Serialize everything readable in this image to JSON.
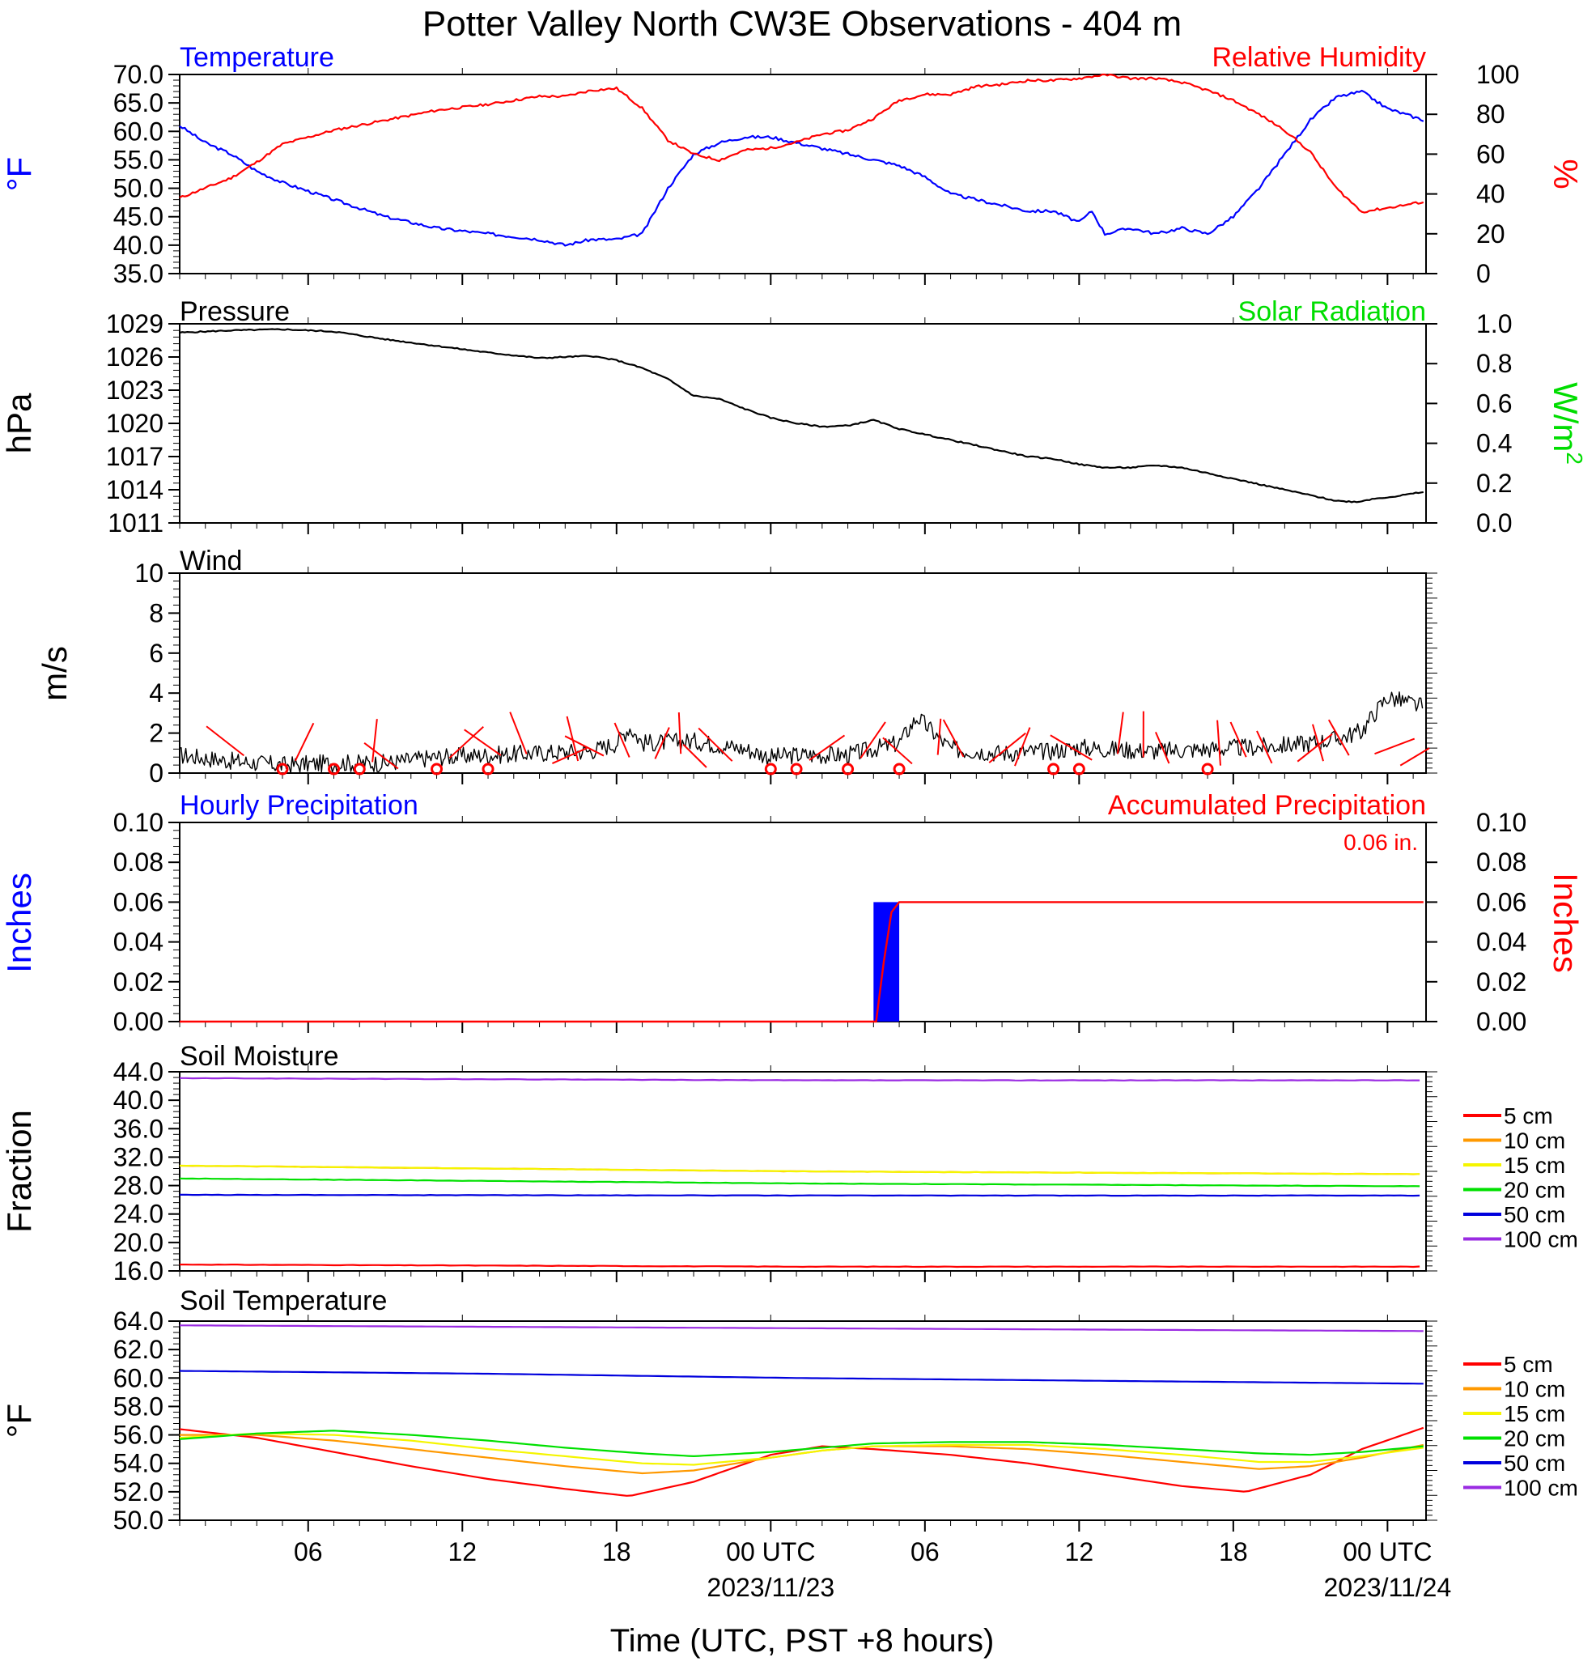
{
  "title": "Potter Valley North CW3E Observations - 404 m",
  "xaxis": {
    "title": "Time (UTC, PST +8 hours)",
    "range_hours": [
      0,
      48.5
    ],
    "ticks": [
      {
        "h": 5,
        "label": "06",
        "date": ""
      },
      {
        "h": 11,
        "label": "12",
        "date": ""
      },
      {
        "h": 17,
        "label": "18",
        "date": ""
      },
      {
        "h": 23,
        "label": "00 UTC",
        "date": "2023/11/23"
      },
      {
        "h": 29,
        "label": "06",
        "date": ""
      },
      {
        "h": 35,
        "label": "12",
        "date": ""
      },
      {
        "h": 41,
        "label": "18",
        "date": ""
      },
      {
        "h": 47,
        "label": "00 UTC",
        "date": "2023/11/24"
      }
    ]
  },
  "panels": {
    "temp_rh": {
      "left_title": "Temperature",
      "right_title": "Relative Humidity",
      "left_ylabel": "°F",
      "right_ylabel": "%",
      "left_ticks": [
        "35.0",
        "40.0",
        "45.0",
        "50.0",
        "55.0",
        "60.0",
        "65.0",
        "70.0"
      ],
      "right_ticks": [
        "0",
        "20",
        "40",
        "60",
        "80",
        "100"
      ]
    },
    "pressure": {
      "left_title": "Pressure",
      "right_title": "Solar Radiation",
      "left_ylabel": "hPa",
      "right_ylabel": "W/m",
      "right_ylabel_sup": "2",
      "left_ticks": [
        "1011",
        "1014",
        "1017",
        "1020",
        "1023",
        "1026",
        "1029"
      ],
      "right_ticks": [
        "0.0",
        "0.2",
        "0.4",
        "0.6",
        "0.8",
        "1.0"
      ]
    },
    "wind": {
      "left_title": "Wind",
      "left_ylabel": "m/s",
      "left_ticks": [
        "0",
        "2",
        "4",
        "6",
        "8",
        "10"
      ]
    },
    "precip": {
      "left_title": "Hourly Precipitation",
      "right_title": "Accumulated Precipitation",
      "total_label": "0.06 in.",
      "left_ylabel": "Inches",
      "right_ylabel": "Inches",
      "left_ticks": [
        "0.00",
        "0.02",
        "0.04",
        "0.06",
        "0.08",
        "0.10"
      ],
      "right_ticks": [
        "0.00",
        "0.02",
        "0.04",
        "0.06",
        "0.08",
        "0.10"
      ]
    },
    "soil_moisture": {
      "left_title": "Soil Moisture",
      "left_ylabel": "Fraction",
      "left_ticks": [
        "16.0",
        "20.0",
        "24.0",
        "28.0",
        "32.0",
        "36.0",
        "40.0",
        "44.0"
      ],
      "legend": [
        "5 cm",
        "10 cm",
        "15 cm",
        "20 cm",
        "50 cm",
        "100 cm"
      ]
    },
    "soil_temp": {
      "left_title": "Soil Temperature",
      "left_ylabel": "°F",
      "left_ticks": [
        "50.0",
        "52.0",
        "54.0",
        "56.0",
        "58.0",
        "60.0",
        "62.0",
        "64.0"
      ],
      "legend": [
        "5 cm",
        "10 cm",
        "15 cm",
        "20 cm",
        "50 cm",
        "100 cm"
      ]
    }
  },
  "colors": {
    "temperature": "#0000ff",
    "humidity": "#ff0000",
    "pressure": "#000000",
    "solar": "#00dd00",
    "wind_speed": "#000000",
    "wind_barb": "#ff0000",
    "hourly_precip": "#0000ff",
    "accum_precip": "#ff0000",
    "d5": "#ff0000",
    "d10": "#ff9900",
    "d15": "#f5f500",
    "d20": "#00e000",
    "d50": "#0000dd",
    "d100": "#9a2be2"
  },
  "chart_data": [
    {
      "type": "line",
      "title": "Temperature",
      "xlabel": "Time (UTC, PST +8 hours)",
      "ylabel": "°F",
      "ylim": [
        35,
        70
      ],
      "series": [
        {
          "name": "Temperature",
          "x": [
            0,
            1,
            2,
            3,
            4,
            6,
            8,
            10,
            12,
            14,
            15,
            16,
            17,
            18,
            19,
            20,
            21,
            22,
            23,
            24,
            25,
            26,
            27,
            28,
            29,
            30,
            31,
            32,
            33,
            34,
            35,
            35.5,
            36,
            37,
            38,
            39,
            40,
            41,
            42,
            43,
            44,
            45,
            46,
            47,
            48.4
          ],
          "y": [
            61,
            58,
            56,
            53,
            51,
            48,
            45,
            43,
            42,
            41,
            40,
            41,
            41,
            42,
            50,
            56,
            58,
            59,
            59,
            58,
            57,
            56,
            55,
            54,
            52,
            49,
            48,
            47,
            46,
            46,
            44,
            46,
            42,
            43,
            42,
            43,
            42,
            45,
            50,
            56,
            62,
            66,
            67,
            64,
            62
          ]
        }
      ]
    },
    {
      "type": "line",
      "title": "Relative Humidity",
      "ylabel": "%",
      "ylim": [
        0,
        100
      ],
      "series": [
        {
          "name": "Relative Humidity",
          "x": [
            0,
            1,
            2,
            3,
            4,
            6,
            8,
            10,
            12,
            14,
            15,
            16,
            17,
            18,
            19,
            20,
            21,
            22,
            23,
            24,
            25,
            26,
            27,
            28,
            29,
            30,
            31,
            32,
            33,
            34,
            35,
            36,
            37,
            38,
            39,
            40,
            41,
            42,
            43,
            44,
            45,
            46,
            47,
            48.4
          ],
          "y": [
            38,
            43,
            48,
            56,
            65,
            72,
            77,
            82,
            85,
            89,
            89,
            92,
            93,
            83,
            67,
            60,
            57,
            62,
            63,
            66,
            70,
            72,
            78,
            87,
            90,
            90,
            94,
            95,
            97,
            97,
            98,
            100,
            98,
            98,
            96,
            92,
            87,
            80,
            72,
            61,
            43,
            31,
            33,
            36
          ]
        }
      ]
    },
    {
      "type": "line",
      "title": "Pressure",
      "ylabel": "hPa",
      "ylim": [
        1011,
        1029
      ],
      "series": [
        {
          "name": "Pressure",
          "x": [
            0,
            2,
            4,
            6,
            8,
            10,
            12,
            14,
            16,
            17,
            18,
            19,
            20,
            21,
            22,
            23,
            24,
            25,
            26,
            27,
            28,
            29,
            30,
            31,
            32,
            33,
            34,
            35,
            36,
            37,
            38,
            39,
            40,
            41,
            42,
            43,
            44,
            45,
            45.8,
            46.5,
            47.3,
            48.4
          ],
          "y": [
            1028.2,
            1028.4,
            1028.5,
            1028.3,
            1027.6,
            1027.0,
            1026.4,
            1025.9,
            1026.1,
            1025.7,
            1025.0,
            1024.0,
            1022.5,
            1022.2,
            1021.3,
            1020.5,
            1020.0,
            1019.7,
            1019.8,
            1020.3,
            1019.5,
            1019.0,
            1018.5,
            1018.0,
            1017.5,
            1017.0,
            1016.8,
            1016.3,
            1016.0,
            1016.0,
            1016.2,
            1016.0,
            1015.5,
            1015.0,
            1014.5,
            1014.0,
            1013.5,
            1013.0,
            1012.9,
            1013.2,
            1013.4,
            1013.8
          ]
        }
      ]
    },
    {
      "type": "line",
      "title": "Wind",
      "ylabel": "m/s",
      "ylim": [
        0,
        10
      ],
      "series": [
        {
          "name": "Wind speed",
          "x": [
            0,
            2,
            4,
            6,
            8,
            10,
            12,
            14,
            16,
            17,
            17.5,
            18,
            20,
            22,
            23,
            24,
            26,
            27,
            28,
            28.7,
            30,
            32,
            34,
            35,
            36,
            38,
            40,
            42,
            44,
            45,
            46,
            46.5,
            47,
            48.4
          ],
          "y": [
            0.9,
            0.6,
            0.4,
            0.5,
            0.5,
            0.8,
            0.9,
            1.0,
            1.1,
            1.5,
            2.3,
            1.5,
            1.6,
            1.2,
            0.8,
            0.9,
            0.9,
            1.2,
            1.5,
            2.8,
            1.2,
            1.0,
            1.1,
            1.3,
            1.2,
            1.1,
            1.2,
            1.3,
            1.5,
            1.7,
            2.1,
            3.0,
            3.8,
            3.3
          ]
        }
      ]
    },
    {
      "type": "bar",
      "title": "Hourly Precipitation",
      "ylabel": "Inches",
      "ylim": [
        0,
        0.1
      ],
      "x": [
        27.5
      ],
      "values": [
        0.06
      ]
    },
    {
      "type": "line",
      "title": "Accumulated Precipitation",
      "ylabel": "Inches",
      "ylim": [
        0,
        0.1
      ],
      "total": "0.06 in.",
      "series": [
        {
          "name": "Accumulated Precipitation",
          "x": [
            0,
            27.1,
            27.4,
            27.7,
            28,
            48.4
          ],
          "y": [
            0,
            0,
            0.03,
            0.055,
            0.06,
            0.06
          ]
        }
      ]
    },
    {
      "type": "line",
      "title": "Soil Moisture",
      "ylabel": "Fraction",
      "ylim": [
        16,
        44
      ],
      "series": [
        {
          "name": "5 cm",
          "x": [
            0,
            24,
            48.4
          ],
          "y": [
            16.9,
            16.6,
            16.6
          ]
        },
        {
          "name": "10 cm",
          "x": [
            0,
            24,
            48.4
          ],
          "y": [
            30.8,
            30.0,
            29.6
          ]
        },
        {
          "name": "15 cm",
          "x": [
            0,
            24,
            48.4
          ],
          "y": [
            30.8,
            30.0,
            29.6
          ]
        },
        {
          "name": "20 cm",
          "x": [
            0,
            24,
            48.4
          ],
          "y": [
            29.0,
            28.3,
            27.9
          ]
        },
        {
          "name": "50 cm",
          "x": [
            0,
            24,
            48.4
          ],
          "y": [
            26.7,
            26.6,
            26.6
          ]
        },
        {
          "name": "100 cm",
          "x": [
            0,
            24,
            48.4
          ],
          "y": [
            43.1,
            42.8,
            42.8
          ]
        }
      ]
    },
    {
      "type": "line",
      "title": "Soil Temperature",
      "ylabel": "°F",
      "ylim": [
        50,
        64
      ],
      "series": [
        {
          "name": "5 cm",
          "x": [
            0,
            3,
            6,
            9,
            12,
            15,
            17.5,
            20,
            23,
            25,
            27,
            30,
            33,
            36,
            39,
            41.5,
            44,
            46,
            48.4
          ],
          "y": [
            56.4,
            55.8,
            54.8,
            53.8,
            52.9,
            52.2,
            51.7,
            52.7,
            54.6,
            55.2,
            55.0,
            54.6,
            54.0,
            53.2,
            52.4,
            52.0,
            53.2,
            55.0,
            56.5
          ]
        },
        {
          "name": "10 cm",
          "x": [
            0,
            3,
            6,
            9,
            12,
            15,
            18,
            20,
            23,
            25,
            27,
            30,
            33,
            36,
            39,
            42,
            44,
            46,
            48.4
          ],
          "y": [
            56.0,
            56.0,
            55.6,
            55.0,
            54.4,
            53.8,
            53.3,
            53.5,
            54.4,
            54.9,
            55.2,
            55.2,
            55.0,
            54.6,
            54.1,
            53.6,
            53.8,
            54.4,
            55.3
          ]
        },
        {
          "name": "15 cm",
          "x": [
            0,
            3,
            6,
            9,
            12,
            15,
            18,
            20,
            23,
            25,
            27,
            30,
            33,
            36,
            39,
            42,
            44,
            46,
            48.4
          ],
          "y": [
            55.8,
            56.1,
            56.0,
            55.6,
            55.0,
            54.5,
            54.0,
            53.9,
            54.4,
            54.9,
            55.2,
            55.3,
            55.3,
            55.0,
            54.6,
            54.1,
            54.1,
            54.5,
            55.1
          ]
        },
        {
          "name": "20 cm",
          "x": [
            0,
            3,
            6,
            9,
            12,
            15,
            18,
            20,
            23,
            25,
            27,
            30,
            33,
            36,
            39,
            42,
            44,
            46,
            48.4
          ],
          "y": [
            55.7,
            56.1,
            56.3,
            56.0,
            55.6,
            55.1,
            54.7,
            54.5,
            54.8,
            55.1,
            55.4,
            55.5,
            55.5,
            55.3,
            55.0,
            54.7,
            54.6,
            54.8,
            55.2
          ]
        },
        {
          "name": "50 cm",
          "x": [
            0,
            12,
            24,
            36,
            48.4
          ],
          "y": [
            60.5,
            60.3,
            60.0,
            59.8,
            59.6
          ]
        },
        {
          "name": "100 cm",
          "x": [
            0,
            12,
            24,
            36,
            48.4
          ],
          "y": [
            63.7,
            63.6,
            63.5,
            63.4,
            63.3
          ]
        }
      ]
    }
  ]
}
